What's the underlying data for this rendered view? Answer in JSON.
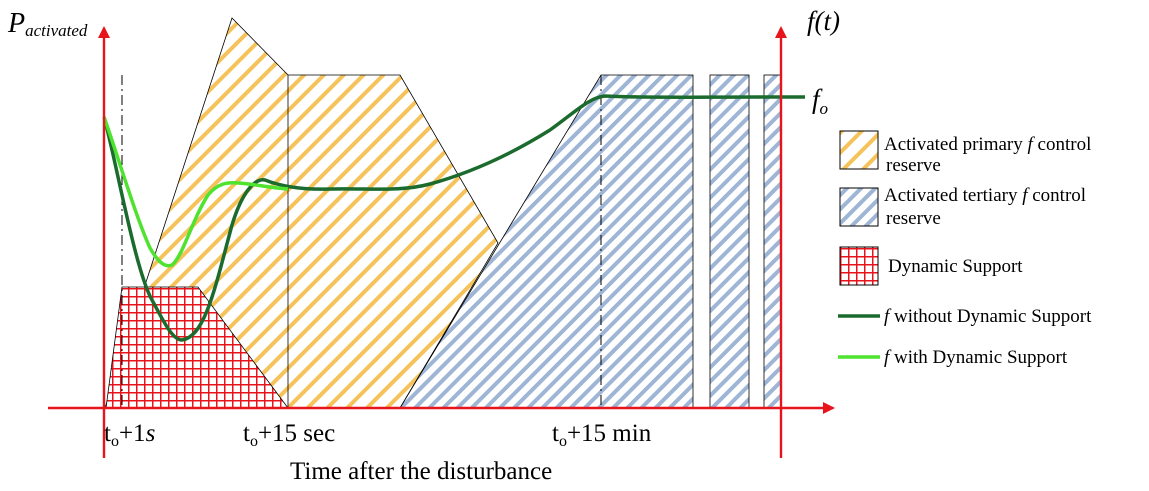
{
  "axes": {
    "y_left_label_main": "P",
    "y_left_label_sub": "activated",
    "y_right_label": "f(t)",
    "x_label": "Time after the disturbance",
    "f_nominal_main": "f",
    "f_nominal_sub": "o"
  },
  "ticks": [
    {
      "main": "t",
      "sub": "o",
      "rest": "+1",
      "unit": "s",
      "unit_italic": true
    },
    {
      "main": "t",
      "sub": "o",
      "rest": "+15 sec",
      "unit": "",
      "unit_italic": false
    },
    {
      "main": "t",
      "sub": "o",
      "rest": "+15 min",
      "unit": "",
      "unit_italic": false
    }
  ],
  "legend": {
    "primary_line1_pre": "Activated primary ",
    "primary_line1_f": "f",
    "primary_line1_post": " control",
    "primary_line2": "reserve",
    "tertiary_line1_pre": "Activated tertiary ",
    "tertiary_line1_f": "f",
    "tertiary_line1_post": " control",
    "tertiary_line2": "reserve",
    "dynamic": "Dynamic Support",
    "without_f": "f",
    "without_text": " without Dynamic Support",
    "with_f": "f",
    "with_text": " with Dynamic Support"
  },
  "colors": {
    "axis": "#e8141b",
    "primary_hatch": "#f6c25a",
    "tertiary_hatch": "#9fb5d6",
    "dynamic_grid": "#e8141b",
    "without_line": "#1b6b2e",
    "with_line": "#4fe22f"
  }
}
